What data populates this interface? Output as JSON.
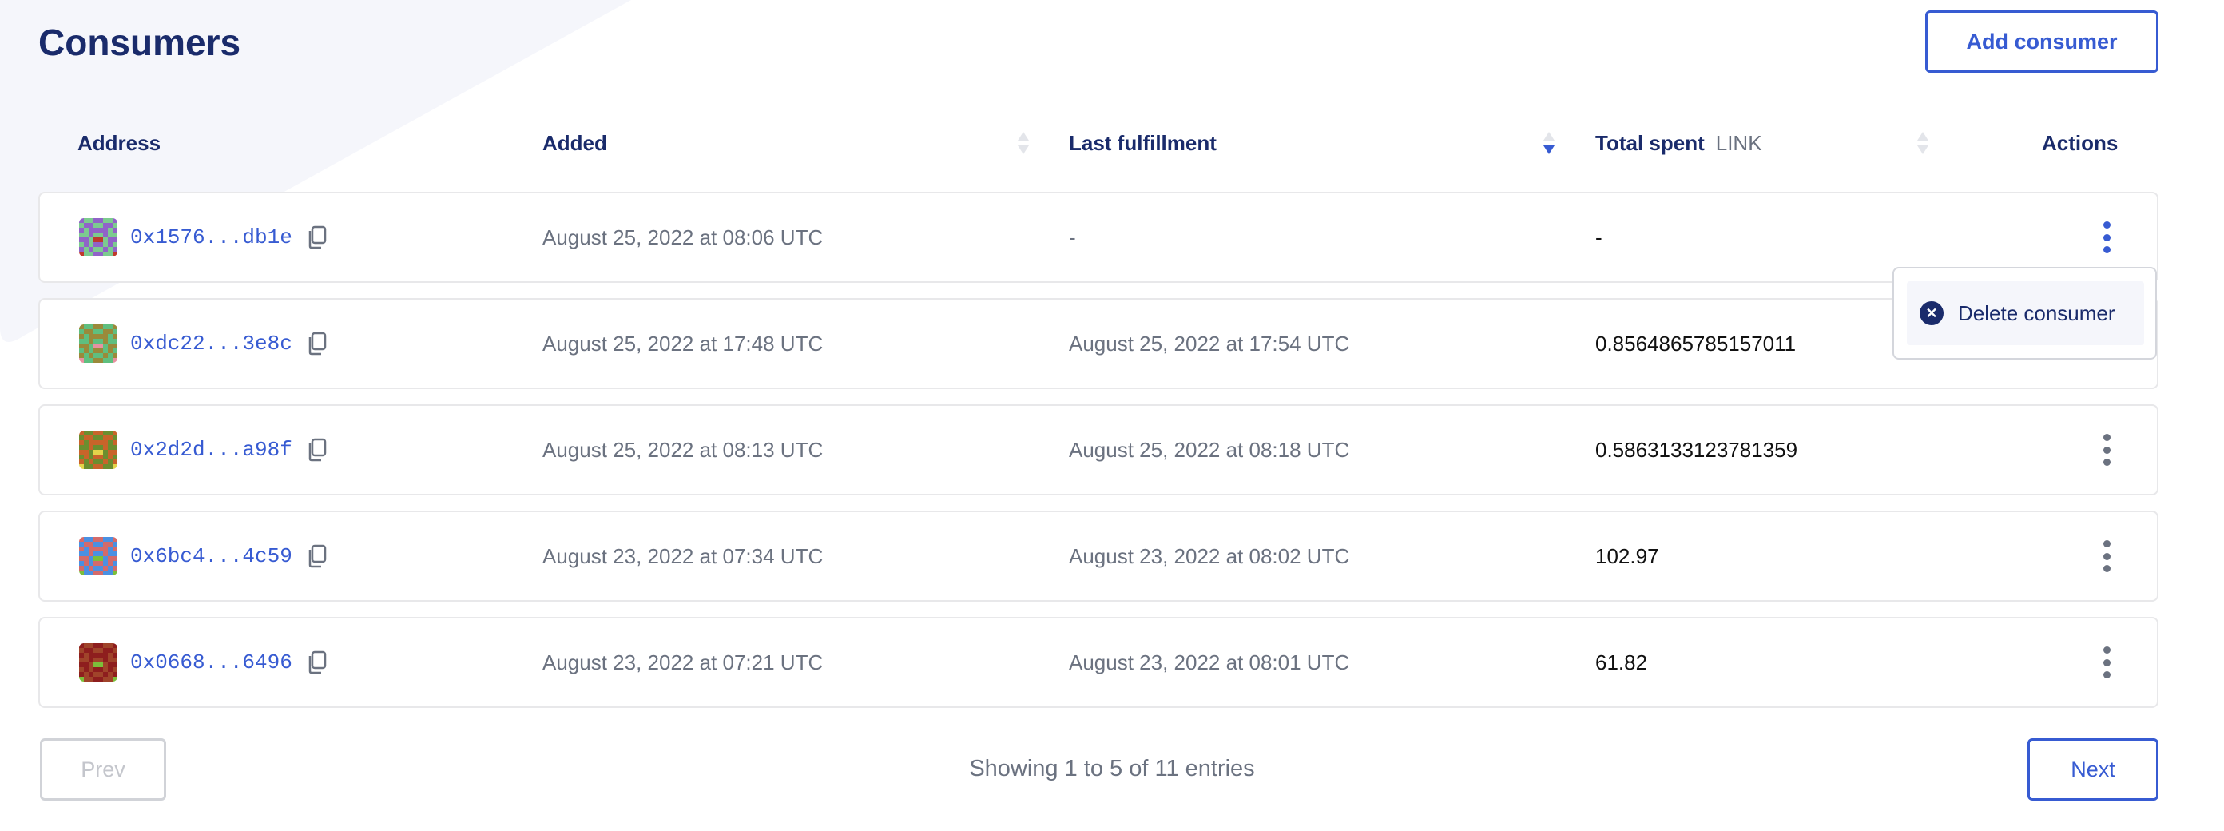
{
  "page": {
    "title": "Consumers",
    "add_button": "Add consumer"
  },
  "colors": {
    "accent": "#375bd2",
    "heading": "#1a2b6b",
    "muted": "#6b7280",
    "background_shape": "#f5f6fb"
  },
  "table": {
    "headers": {
      "address": "Address",
      "added": "Added",
      "last_fulfillment": "Last fulfillment",
      "total_spent": "Total spent",
      "total_spent_unit": "LINK",
      "actions": "Actions"
    },
    "sort": {
      "column": "last_fulfillment",
      "direction": "descending"
    },
    "rows": [
      {
        "address": "0x1576...db1e",
        "added": "August 25, 2022 at 08:06 UTC",
        "last_fulfillment": "-",
        "total_spent": "-",
        "avatar_colors": [
          "#7ccb8f",
          "#9063c8",
          "#c0392b"
        ]
      },
      {
        "address": "0xdc22...3e8c",
        "added": "August 25, 2022 at 17:48 UTC",
        "last_fulfillment": "August 25, 2022 at 17:54 UTC",
        "total_spent": "0.8564865785157011",
        "avatar_colors": [
          "#5fbf7f",
          "#9a8a3a",
          "#e891a0"
        ]
      },
      {
        "address": "0x2d2d...a98f",
        "added": "August 25, 2022 at 08:13 UTC",
        "last_fulfillment": "August 25, 2022 at 08:18 UTC",
        "total_spent": "0.5863133123781359",
        "avatar_colors": [
          "#6b8e2f",
          "#c8642a",
          "#e3d44a"
        ]
      },
      {
        "address": "0x6bc4...4c59",
        "added": "August 23, 2022 at 07:34 UTC",
        "last_fulfillment": "August 23, 2022 at 08:02 UTC",
        "total_spent": "102.97",
        "avatar_colors": [
          "#4a90e2",
          "#d46a6a",
          "#7cbf3a"
        ]
      },
      {
        "address": "0x0668...6496",
        "added": "August 23, 2022 at 07:21 UTC",
        "last_fulfillment": "August 23, 2022 at 08:01 UTC",
        "total_spent": "61.82",
        "avatar_colors": [
          "#a0442a",
          "#8e1e1e",
          "#7cbf3a"
        ]
      }
    ]
  },
  "actions_menu": {
    "open_for_row": 0,
    "items": [
      {
        "label": "Delete consumer",
        "icon": "x-circle-icon"
      }
    ]
  },
  "pagination": {
    "prev": "Prev",
    "next": "Next",
    "status": "Showing 1 to 5 of 11 entries",
    "prev_disabled": true
  }
}
